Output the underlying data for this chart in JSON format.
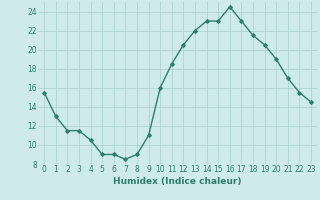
{
  "x": [
    0,
    1,
    2,
    3,
    4,
    5,
    6,
    7,
    8,
    9,
    10,
    11,
    12,
    13,
    14,
    15,
    16,
    17,
    18,
    19,
    20,
    21,
    22,
    23
  ],
  "y": [
    15.5,
    13.0,
    11.5,
    11.5,
    10.5,
    9.0,
    9.0,
    8.5,
    9.0,
    11.0,
    16.0,
    18.5,
    20.5,
    22.0,
    23.0,
    23.0,
    24.5,
    23.0,
    21.5,
    20.5,
    19.0,
    17.0,
    15.5,
    14.5
  ],
  "line_color": "#2e7d6e",
  "marker": "D",
  "marker_size": 1.8,
  "line_width": 1.0,
  "bg_color": "#ceeaea",
  "grid_color": "#aacece",
  "xlabel": "Humidex (Indice chaleur)",
  "xlim": [
    -0.5,
    23.5
  ],
  "ylim": [
    8,
    25
  ],
  "yticks": [
    8,
    10,
    12,
    14,
    16,
    18,
    20,
    22,
    24
  ],
  "xticks": [
    0,
    1,
    2,
    3,
    4,
    5,
    6,
    7,
    8,
    9,
    10,
    11,
    12,
    13,
    14,
    15,
    16,
    17,
    18,
    19,
    20,
    21,
    22,
    23
  ],
  "xlabel_fontsize": 6.5,
  "tick_fontsize": 5.5,
  "xlabel_color": "#2e7d6e",
  "tick_color": "#2e7d6e"
}
